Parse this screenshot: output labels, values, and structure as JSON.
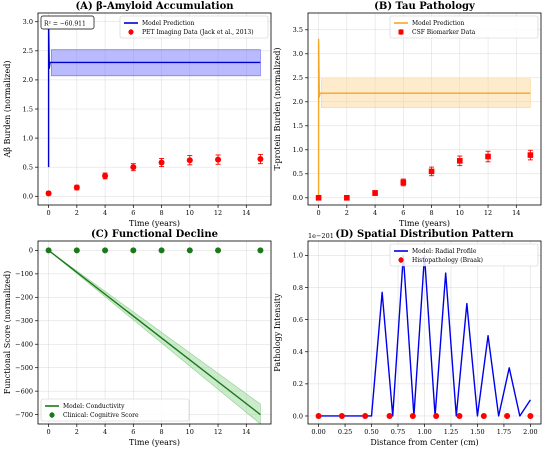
{
  "chart_data": [
    {
      "id": "A",
      "type": "line",
      "title": "(A) β-Amyloid Accumulation",
      "xlabel": "Time (years)",
      "ylabel": "Aβ Burden (normalized)",
      "xlim": [
        -0.75,
        15.75
      ],
      "ylim": [
        -0.15,
        3.15
      ],
      "xticks": [
        0,
        2,
        4,
        6,
        8,
        10,
        12,
        14
      ],
      "yticks": [
        0.0,
        0.5,
        1.0,
        1.5,
        2.0,
        2.5,
        3.0
      ],
      "ytick_decimals": 1,
      "grid": true,
      "legend_position": "top-right",
      "annotation": "R² = −60.911",
      "series": [
        {
          "name": "Model Prediction",
          "kind": "line",
          "color": "#0000cc",
          "x": [
            0,
            0,
            0.05,
            0.1,
            0.2,
            15
          ],
          "y": [
            0.5,
            3.0,
            2.2,
            2.3,
            2.3,
            2.3
          ],
          "band": {
            "x": [
              0.2,
              15
            ],
            "lower": [
              2.07,
              2.07
            ],
            "upper": [
              2.52,
              2.52
            ],
            "color": "#6666ff"
          }
        },
        {
          "name": "PET Imaging Data (Jack et al., 2013)",
          "kind": "errorbar",
          "color": "#ff0000",
          "x": [
            0,
            2,
            4,
            6,
            8,
            10,
            12,
            15
          ],
          "y": [
            0.05,
            0.15,
            0.35,
            0.5,
            0.58,
            0.62,
            0.63,
            0.64
          ],
          "err": [
            0.03,
            0.04,
            0.05,
            0.06,
            0.07,
            0.08,
            0.08,
            0.08
          ],
          "marker": "circle"
        }
      ]
    },
    {
      "id": "B",
      "type": "line",
      "title": "(B) Tau Pathology",
      "xlabel": "Time (years)",
      "ylabel": "T-protein Burden (normalized)",
      "xlim": [
        -0.75,
        15.75
      ],
      "ylim": [
        -0.15,
        3.85
      ],
      "xticks": [
        0,
        2,
        4,
        6,
        8,
        10,
        12,
        14
      ],
      "yticks": [
        0.0,
        0.5,
        1.0,
        1.5,
        2.0,
        2.5,
        3.0,
        3.5
      ],
      "ytick_decimals": 1,
      "grid": true,
      "legend_position": "top-right",
      "series": [
        {
          "name": "Model Prediction",
          "kind": "line",
          "color": "#f5a623",
          "x": [
            0,
            0,
            0.05,
            0.1,
            0.2,
            15
          ],
          "y": [
            0.0,
            3.3,
            2.1,
            2.18,
            2.18,
            2.18
          ],
          "band": {
            "x": [
              0.2,
              15
            ],
            "lower": [
              1.88,
              1.88
            ],
            "upper": [
              2.48,
              2.48
            ],
            "color": "#fbd38d"
          }
        },
        {
          "name": "CSF Biomarker Data",
          "kind": "errorbar",
          "color": "#ff0000",
          "x": [
            0,
            2,
            4,
            6,
            8,
            10,
            12,
            15
          ],
          "y": [
            0.0,
            0.0,
            0.1,
            0.32,
            0.55,
            0.77,
            0.86,
            0.89
          ],
          "err": [
            0.02,
            0.03,
            0.05,
            0.07,
            0.09,
            0.1,
            0.11,
            0.1
          ],
          "marker": "square"
        }
      ]
    },
    {
      "id": "C",
      "type": "line",
      "title": "(C) Functional Decline",
      "xlabel": "Time (years)",
      "ylabel": "Functional Score (normalized)",
      "xlim": [
        -0.75,
        15.75
      ],
      "ylim": [
        -740,
        40
      ],
      "xticks": [
        0,
        2,
        4,
        6,
        8,
        10,
        12,
        14
      ],
      "yticks": [
        0,
        -100,
        -200,
        -300,
        -400,
        -500,
        -600,
        -700
      ],
      "ytick_decimals": 0,
      "grid": true,
      "legend_position": "bottom-left",
      "series": [
        {
          "name": "Model: Conductivity",
          "kind": "line",
          "color": "#1a7a1a",
          "x": [
            0,
            15
          ],
          "y": [
            0,
            -700
          ],
          "band": {
            "x": [
              0,
              15
            ],
            "lower": [
              0,
              -740
            ],
            "upper": [
              0,
              -655
            ],
            "color": "#8fd18f"
          }
        },
        {
          "name": "Clinical: Cognitive Score",
          "kind": "errorbar",
          "color": "#1a7a1a",
          "x": [
            0,
            2,
            4,
            6,
            8,
            10,
            12,
            15
          ],
          "y": [
            0,
            0,
            0,
            0,
            0,
            0,
            0,
            0
          ],
          "err": [
            0,
            0,
            0,
            0,
            0,
            0,
            0,
            0
          ],
          "marker": "circle"
        }
      ]
    },
    {
      "id": "D",
      "type": "line",
      "title": "(D) Spatial Distribution Pattern",
      "xlabel": "Distance from Center (cm)",
      "ylabel": "Pathology Intensity",
      "scale_label": "1e−201",
      "xlim": [
        -0.1,
        2.1
      ],
      "ylim": [
        -0.05,
        1.09
      ],
      "xticks": [
        0.0,
        0.25,
        0.5,
        0.75,
        1.0,
        1.25,
        1.5,
        1.75,
        2.0
      ],
      "xtick_decimals": 2,
      "yticks": [
        0.0,
        0.2,
        0.4,
        0.6,
        0.8,
        1.0
      ],
      "ytick_decimals": 1,
      "grid": true,
      "legend_position": "top-right",
      "series": [
        {
          "name": "Model: Radial Profile",
          "kind": "line",
          "color": "#0000ee",
          "x": [
            0,
            0.1,
            0.2,
            0.3,
            0.4,
            0.5,
            0.6,
            0.7,
            0.8,
            0.9,
            1.0,
            1.1,
            1.2,
            1.3,
            1.4,
            1.5,
            1.6,
            1.7,
            1.8,
            1.9,
            2.0
          ],
          "y": [
            0,
            0,
            0,
            0,
            0,
            0,
            0.77,
            0,
            1.0,
            0,
            1.0,
            0,
            0.89,
            0,
            0.7,
            0,
            0.5,
            0,
            0.3,
            0,
            0.1
          ]
        },
        {
          "name": "Histopathology (Braak)",
          "kind": "errorbar",
          "color": "#ff0000",
          "x": [
            0,
            0.22,
            0.44,
            0.67,
            0.89,
            1.11,
            1.33,
            1.56,
            1.78,
            2.0
          ],
          "y": [
            0,
            0,
            0,
            0,
            0,
            0,
            0,
            0,
            0,
            0
          ],
          "err": [
            0,
            0,
            0,
            0,
            0,
            0,
            0,
            0,
            0,
            0
          ],
          "marker": "circle"
        }
      ]
    }
  ]
}
